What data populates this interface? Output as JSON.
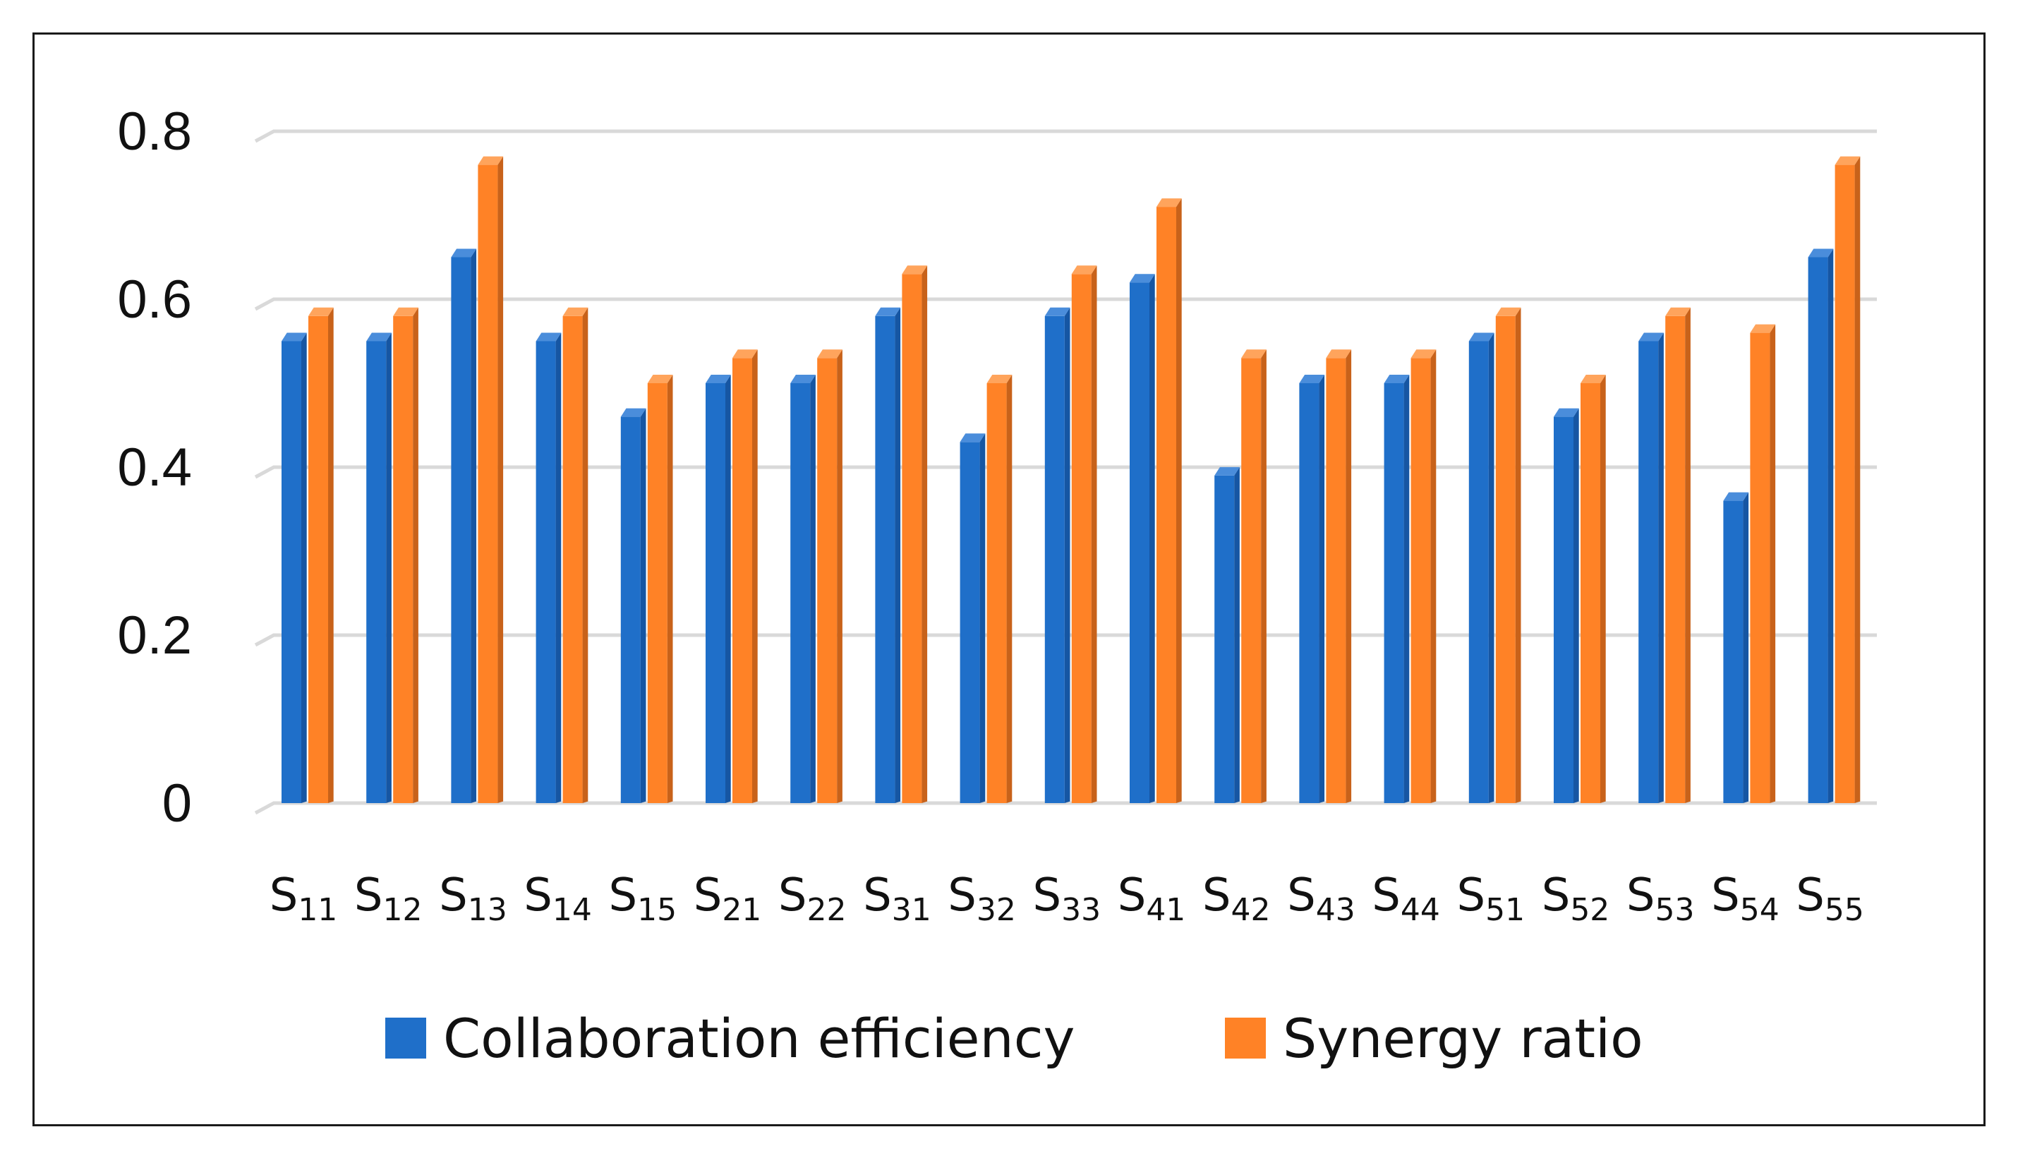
{
  "chart_data": {
    "type": "bar",
    "title": "",
    "xlabel": "",
    "ylabel": "",
    "ylim": [
      0,
      0.8
    ],
    "yticks": [
      "0",
      "0.2",
      "0.4",
      "0.6",
      "0.8"
    ],
    "grid": true,
    "legend_position": "bottom",
    "categories": [
      {
        "base": "S",
        "sub": "11"
      },
      {
        "base": "S",
        "sub": "12"
      },
      {
        "base": "S",
        "sub": "13"
      },
      {
        "base": "S",
        "sub": "14"
      },
      {
        "base": "S",
        "sub": "15"
      },
      {
        "base": "S",
        "sub": "21"
      },
      {
        "base": "S",
        "sub": "22"
      },
      {
        "base": "S",
        "sub": "31"
      },
      {
        "base": "S",
        "sub": "32"
      },
      {
        "base": "S",
        "sub": "33"
      },
      {
        "base": "S",
        "sub": "41"
      },
      {
        "base": "S",
        "sub": "42"
      },
      {
        "base": "S",
        "sub": "43"
      },
      {
        "base": "S",
        "sub": "44"
      },
      {
        "base": "S",
        "sub": "51"
      },
      {
        "base": "S",
        "sub": "52"
      },
      {
        "base": "S",
        "sub": "53"
      },
      {
        "base": "S",
        "sub": "54"
      },
      {
        "base": "S",
        "sub": "55"
      }
    ],
    "series": [
      {
        "name": "Collaboration efficiency",
        "color": "#1F6FC9",
        "side_color": "#1656A3",
        "top_color": "#4A8DDB",
        "values": [
          0.55,
          0.55,
          0.65,
          0.55,
          0.46,
          0.5,
          0.5,
          0.58,
          0.43,
          0.58,
          0.62,
          0.39,
          0.5,
          0.5,
          0.55,
          0.46,
          0.55,
          0.36,
          0.65
        ]
      },
      {
        "name": "Synergy ratio",
        "color": "#FF8226",
        "side_color": "#C8621A",
        "top_color": "#FFA45C",
        "values": [
          0.58,
          0.58,
          0.76,
          0.58,
          0.5,
          0.53,
          0.53,
          0.63,
          0.5,
          0.63,
          0.71,
          0.53,
          0.53,
          0.53,
          0.58,
          0.5,
          0.58,
          0.56,
          0.76
        ]
      }
    ]
  },
  "colors": {
    "grid": "#D9D9D9",
    "axis_text": "#111111",
    "frame": "#1A1A1A"
  }
}
